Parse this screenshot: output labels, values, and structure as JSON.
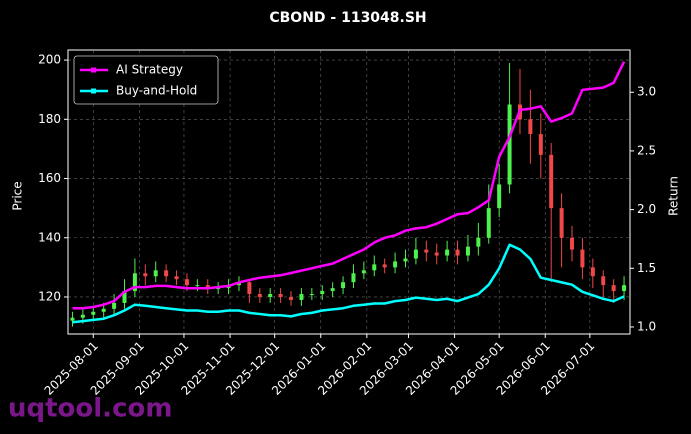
{
  "chart_data": {
    "type": "candlestick",
    "title": "CBOND - 113048.SH",
    "ylabel": "Price",
    "y2label": "Return",
    "x": [
      "2025-07-18",
      "2025-07-25",
      "2025-08-01",
      "2025-08-08",
      "2025-08-15",
      "2025-08-22",
      "2025-08-29",
      "2025-09-05",
      "2025-09-12",
      "2025-09-19",
      "2025-09-26",
      "2025-10-03",
      "2025-10-10",
      "2025-10-17",
      "2025-10-24",
      "2025-10-31",
      "2025-11-07",
      "2025-11-14",
      "2025-11-21",
      "2025-11-28",
      "2025-12-05",
      "2025-12-12",
      "2025-12-19",
      "2025-12-26",
      "2026-01-02",
      "2026-01-09",
      "2026-01-16",
      "2026-01-23",
      "2026-01-30",
      "2026-02-06",
      "2026-02-13",
      "2026-02-20",
      "2026-02-27",
      "2026-03-06",
      "2026-03-13",
      "2026-03-20",
      "2026-03-27",
      "2026-04-03",
      "2026-04-10",
      "2026-04-17",
      "2026-04-24",
      "2026-05-01",
      "2026-05-08",
      "2026-05-15",
      "2026-05-22",
      "2026-05-29",
      "2026-06-05",
      "2026-06-12",
      "2026-06-19",
      "2026-06-26",
      "2026-07-03",
      "2026-07-10",
      "2026-07-17",
      "2026-07-24"
    ],
    "open": [
      112,
      113,
      114,
      115,
      116,
      118,
      122,
      128,
      127,
      129,
      127,
      126,
      124,
      124,
      123,
      123,
      124,
      125,
      121,
      120,
      121,
      120,
      119,
      121,
      121,
      122,
      123,
      125,
      128,
      129,
      131,
      130,
      132,
      133,
      136,
      135,
      134,
      136,
      134,
      137,
      140,
      150,
      158,
      185,
      180,
      175,
      168,
      150,
      140,
      136,
      130,
      127,
      124,
      122
    ],
    "high": [
      115,
      116,
      117,
      118,
      121,
      126,
      133,
      131,
      132,
      131,
      129,
      128,
      126,
      126,
      125,
      126,
      127,
      126,
      123,
      123,
      123,
      122,
      123,
      123,
      124,
      125,
      127,
      131,
      132,
      134,
      133,
      135,
      136,
      140,
      139,
      138,
      139,
      139,
      141,
      145,
      158,
      165,
      199,
      197,
      190,
      182,
      172,
      155,
      144,
      140,
      133,
      129,
      126,
      127
    ],
    "low": [
      110,
      111,
      112,
      113,
      114,
      116,
      120,
      124,
      125,
      125,
      124,
      122,
      122,
      121,
      121,
      121,
      122,
      118,
      118,
      118,
      118,
      117,
      117,
      119,
      119,
      120,
      121,
      123,
      126,
      127,
      128,
      128,
      130,
      131,
      132,
      131,
      132,
      131,
      132,
      134,
      138,
      147,
      155,
      175,
      165,
      160,
      125,
      130,
      132,
      126,
      123,
      120,
      118,
      119
    ],
    "close": [
      113,
      114,
      115,
      116,
      118,
      122,
      128,
      127,
      129,
      127,
      126,
      124,
      124,
      123,
      123,
      124,
      125,
      121,
      120,
      121,
      120,
      119,
      121,
      121,
      122,
      123,
      125,
      128,
      129,
      131,
      130,
      132,
      133,
      136,
      135,
      134,
      136,
      134,
      137,
      140,
      150,
      158,
      185,
      180,
      175,
      168,
      150,
      140,
      136,
      130,
      127,
      124,
      122,
      124
    ],
    "up_color": "#4df24d",
    "down_color": "#f04848",
    "series": [
      {
        "name": "AI Strategy",
        "color": "#ff00ff",
        "axis": "y2",
        "values": [
          1.16,
          1.16,
          1.17,
          1.19,
          1.22,
          1.3,
          1.34,
          1.34,
          1.35,
          1.35,
          1.34,
          1.33,
          1.33,
          1.33,
          1.34,
          1.35,
          1.38,
          1.4,
          1.42,
          1.43,
          1.44,
          1.46,
          1.48,
          1.5,
          1.52,
          1.54,
          1.58,
          1.62,
          1.66,
          1.72,
          1.76,
          1.78,
          1.82,
          1.84,
          1.85,
          1.88,
          1.92,
          1.96,
          1.97,
          2.02,
          2.08,
          2.45,
          2.62,
          2.85,
          2.86,
          2.88,
          2.75,
          2.78,
          2.82,
          3.02,
          3.03,
          3.04,
          3.08,
          3.26
        ]
      },
      {
        "name": "Buy-and-Hold",
        "color": "#00ffff",
        "axis": "y2",
        "values": [
          1.04,
          1.05,
          1.06,
          1.07,
          1.1,
          1.14,
          1.19,
          1.18,
          1.17,
          1.16,
          1.15,
          1.14,
          1.14,
          1.13,
          1.13,
          1.14,
          1.14,
          1.12,
          1.11,
          1.1,
          1.1,
          1.09,
          1.11,
          1.12,
          1.14,
          1.15,
          1.16,
          1.18,
          1.19,
          1.2,
          1.2,
          1.22,
          1.23,
          1.25,
          1.24,
          1.23,
          1.24,
          1.22,
          1.25,
          1.28,
          1.36,
          1.5,
          1.7,
          1.66,
          1.58,
          1.42,
          1.4,
          1.38,
          1.36,
          1.3,
          1.27,
          1.24,
          1.22,
          1.26
        ]
      }
    ],
    "xlim": [
      "2025-07-15",
      "2026-07-28"
    ],
    "xticks": [
      "2025-08-01",
      "2025-09-01",
      "2025-10-01",
      "2025-11-01",
      "2025-12-01",
      "2026-01-01",
      "2026-02-01",
      "2026-03-01",
      "2026-04-01",
      "2026-05-01",
      "2026-06-01",
      "2026-07-01"
    ],
    "ylim": [
      107.5,
      203.4
    ],
    "yticks": [
      120,
      140,
      160,
      180,
      200
    ],
    "y2lim": [
      0.94,
      3.36
    ],
    "y2ticks": [
      {
        "value": 1,
        "label": "1.0"
      },
      {
        "value": 1.5,
        "label": "1.5"
      },
      {
        "value": 2,
        "label": "2.0"
      },
      {
        "value": 2.5,
        "label": "2.5"
      },
      {
        "value": 3,
        "label": "3.0"
      }
    ],
    "grid": true,
    "legend": "upper left"
  },
  "watermark": "uqtool.com"
}
